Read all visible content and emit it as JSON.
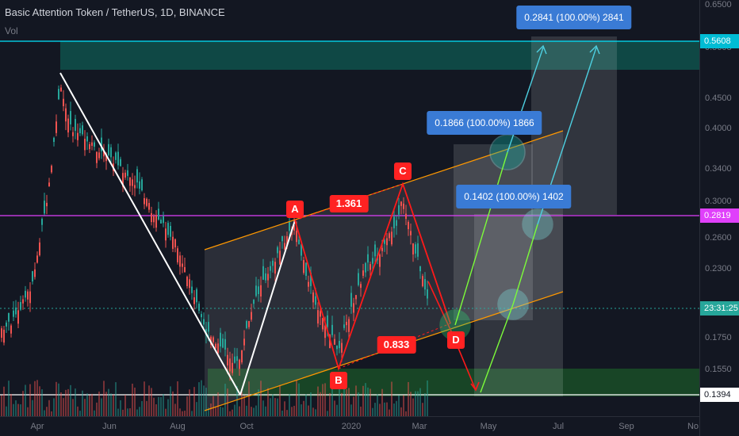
{
  "header": {
    "title": "Basic Attention Token / TetherUS, 1D, BINANCE",
    "vol": "Vol"
  },
  "price_axis": {
    "ticks": [
      "0.6500",
      "0.5608",
      "0.4500",
      "0.4000",
      "0.3400",
      "0.3000",
      "0.2600",
      "0.2300",
      "0.1750",
      "0.1550"
    ],
    "labels": [
      {
        "text": "0.5608",
        "color": "#00bcd4"
      },
      {
        "text": "0.2819",
        "color": "#e040fb"
      },
      {
        "text": "23:31:25",
        "color": "#26a69a"
      },
      {
        "text": "0.1394",
        "color": "#ffffff"
      }
    ]
  },
  "date_axis": [
    "Apr",
    "Jun",
    "Aug",
    "Oct",
    "2020",
    "Mar",
    "May",
    "Jul",
    "Sep",
    "No"
  ],
  "pattern": {
    "points": [
      "A",
      "B",
      "C",
      "D"
    ],
    "ratios": [
      "1.361",
      "0.833"
    ]
  },
  "targets": [
    "0.2841 (100.00%) 2841",
    "0.1866 (100.00%) 1866",
    "0.1402 (100.00%) 1402"
  ],
  "colors": {
    "up": "#26a69a",
    "down": "#ef5350",
    "channel": "#ff9800",
    "pattern": "#ff1a1a",
    "target_box": "#3a7bd5"
  }
}
